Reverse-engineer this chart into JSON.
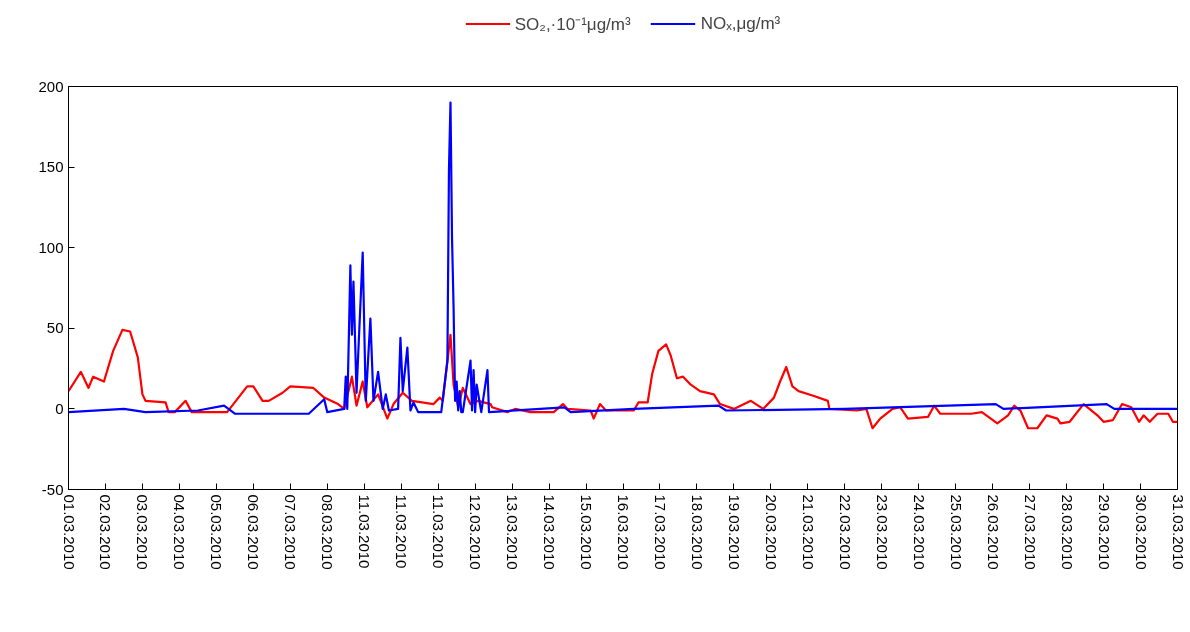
{
  "chart_data": {
    "type": "line",
    "legend": "top",
    "grid": false,
    "line_style": "solid",
    "marker": "none",
    "xlim": [
      "2010-03-01",
      "2010-03-31"
    ],
    "ylim": [
      -50,
      200
    ],
    "yticks": [
      -50,
      0,
      50,
      100,
      150,
      200
    ],
    "xticks": [
      {
        "value": "2010-03-01",
        "label": "01.03.2010"
      },
      {
        "value": "2010-03-02",
        "label": "02.03.2010"
      },
      {
        "value": "2010-03-03",
        "label": "03.03.2010"
      },
      {
        "value": "2010-03-04",
        "label": "04.03.2010"
      },
      {
        "value": "2010-03-05",
        "label": "05.03.2010"
      },
      {
        "value": "2010-03-06",
        "label": "06.03.2010"
      },
      {
        "value": "2010-03-07",
        "label": "07.03.2010"
      },
      {
        "value": "2010-03-08",
        "label": "08.03.2010"
      },
      {
        "value": "2010-03-09",
        "label": "11.03.2010"
      },
      {
        "value": "2010-03-10",
        "label": "11.03.2010"
      },
      {
        "value": "2010-03-11",
        "label": "11.03.2010"
      },
      {
        "value": "2010-03-12",
        "label": "12.03.2010"
      },
      {
        "value": "2010-03-13",
        "label": "13.03.2010"
      },
      {
        "value": "2010-03-14",
        "label": "14.03.2010"
      },
      {
        "value": "2010-03-15",
        "label": "15.03.2010"
      },
      {
        "value": "2010-03-16",
        "label": "16.03.2010"
      },
      {
        "value": "2010-03-17",
        "label": "17.03.2010"
      },
      {
        "value": "2010-03-18",
        "label": "18.03.2010"
      },
      {
        "value": "2010-03-19",
        "label": "19.03.2010"
      },
      {
        "value": "2010-03-20",
        "label": "20.03.2010"
      },
      {
        "value": "2010-03-21",
        "label": "21.03.2010"
      },
      {
        "value": "2010-03-22",
        "label": "22.03.2010"
      },
      {
        "value": "2010-03-23",
        "label": "23.03.2010"
      },
      {
        "value": "2010-03-24",
        "label": "24.03.2010"
      },
      {
        "value": "2010-03-25",
        "label": "25.03.2010"
      },
      {
        "value": "2010-03-26",
        "label": "26.03.2010"
      },
      {
        "value": "2010-03-27",
        "label": "27.03.2010"
      },
      {
        "value": "2010-03-28",
        "label": "28.03.2010"
      },
      {
        "value": "2010-03-29",
        "label": "29.03.2010"
      },
      {
        "value": "2010-03-30",
        "label": "30.03.2010"
      },
      {
        "value": "2010-03-31",
        "label": "31.03.2010"
      }
    ],
    "series": [
      {
        "name": "SO₂,·10⁻¹μg/m³",
        "color": "#ff0000",
        "x": [
          "2010-03-01T00:00",
          "2010-03-01T08:00",
          "2010-03-01T13:00",
          "2010-03-01T16:00",
          "2010-03-01T23:00",
          "2010-03-02T05:00",
          "2010-03-02T11:00",
          "2010-03-02T16:00",
          "2010-03-02T21:00",
          "2010-03-03T00:00",
          "2010-03-03T02:00",
          "2010-03-03T15:00",
          "2010-03-03T17:00",
          "2010-03-03T21:00",
          "2010-03-04T04:00",
          "2010-03-04T08:00",
          "2010-03-05T07:00",
          "2010-03-05T20:00",
          "2010-03-06T00:00",
          "2010-03-06T06:00",
          "2010-03-06T10:00",
          "2010-03-06T19:00",
          "2010-03-07T00:00",
          "2010-03-07T15:00",
          "2010-03-07T22:00",
          "2010-03-08T07:00",
          "2010-03-08T11:00",
          "2010-03-08T16:00",
          "2010-03-08T19:00",
          "2010-03-08T23:00",
          "2010-03-09T02:00",
          "2010-03-09T09:00",
          "2010-03-09T15:00",
          "2010-03-09T19:00",
          "2010-03-10T01:00",
          "2010-03-10T07:00",
          "2010-03-10T21:00",
          "2010-03-11T01:00",
          "2010-03-11T03:00",
          "2010-03-11T08:00",
          "2010-03-11T10:00",
          "2010-03-11T13:00",
          "2010-03-11T16:00",
          "2010-03-11T21:00",
          "2010-03-12T02:00",
          "2010-03-12T10:00",
          "2010-03-12T11:00",
          "2010-03-12T21:00",
          "2010-03-13T02:00",
          "2010-03-13T12:00",
          "2010-03-14T03:00",
          "2010-03-14T09:00",
          "2010-03-14T12:00",
          "2010-03-15T03:00",
          "2010-03-15T05:00",
          "2010-03-15T09:00",
          "2010-03-15T13:00",
          "2010-03-16T07:00",
          "2010-03-16T10:00",
          "2010-03-16T16:00",
          "2010-03-16T19:00",
          "2010-03-16T23:00",
          "2010-03-17T04:00",
          "2010-03-17T07:00",
          "2010-03-17T11:00",
          "2010-03-17T15:00",
          "2010-03-17T20:00",
          "2010-03-18T02:00",
          "2010-03-18T11:00",
          "2010-03-18T15:00",
          "2010-03-19T00:00",
          "2010-03-19T11:00",
          "2010-03-19T19:00",
          "2010-03-20T02:00",
          "2010-03-20T06:00",
          "2010-03-20T10:00",
          "2010-03-20T14:00",
          "2010-03-20T18:00",
          "2010-03-21T04:00",
          "2010-03-21T13:00",
          "2010-03-21T14:00",
          "2010-03-22T08:00",
          "2010-03-22T14:00",
          "2010-03-22T18:00",
          "2010-03-22T23:00",
          "2010-03-23T07:00",
          "2010-03-23T12:00",
          "2010-03-23T17:00",
          "2010-03-24T06:00",
          "2010-03-24T10:00",
          "2010-03-24T14:00",
          "2010-03-25T10:00",
          "2010-03-25T17:00",
          "2010-03-26T03:00",
          "2010-03-26T10:00",
          "2010-03-26T14:00",
          "2010-03-26T18:00",
          "2010-03-26T23:00",
          "2010-03-27T05:00",
          "2010-03-27T11:00",
          "2010-03-27T18:00",
          "2010-03-27T20:00",
          "2010-03-28T02:00",
          "2010-03-28T11:00",
          "2010-03-28T20:00",
          "2010-03-29T00:00",
          "2010-03-29T06:00",
          "2010-03-29T12:00",
          "2010-03-29T18:00",
          "2010-03-29T23:00",
          "2010-03-30T02:00",
          "2010-03-30T06:00",
          "2010-03-30T11:00",
          "2010-03-30T18:00",
          "2010-03-30T21:00",
          "2010-03-31T00:00"
        ],
        "values": [
          11,
          23,
          13,
          20,
          17,
          36,
          49,
          48,
          32,
          9,
          5,
          4,
          -2,
          -2,
          5,
          -2,
          -2,
          14,
          14,
          5,
          5,
          10,
          14,
          13,
          7,
          3,
          0,
          20,
          2,
          17,
          1,
          9,
          -6,
          3,
          10,
          5,
          3,
          7,
          5,
          46,
          15,
          1,
          13,
          3,
          5,
          3,
          1,
          -2,
          0,
          -2,
          -2,
          3,
          0,
          -1,
          -6,
          3,
          -1,
          -1,
          4,
          4,
          22,
          36,
          40,
          33,
          19,
          20,
          15,
          11,
          9,
          3,
          0,
          5,
          0,
          7,
          17,
          26,
          14,
          11,
          8,
          5,
          0,
          -1,
          0,
          -12,
          -6,
          0,
          1,
          -6,
          -5,
          2,
          -3,
          -3,
          -2,
          -9,
          -4,
          2,
          -1,
          -12,
          -12,
          -4,
          -6,
          -9,
          -8,
          3,
          -4,
          -8,
          -7,
          3,
          1,
          -8,
          -4,
          -8,
          -3,
          -3,
          -8,
          -8
        ]
      },
      {
        "name": "NOₓ,μg/m³",
        "color": "#0000ff",
        "x": [
          "2010-03-01T00:00",
          "2010-03-02T12:00",
          "2010-03-03T02:00",
          "2010-03-04T12:00",
          "2010-03-05T05:00",
          "2010-03-05T12:00",
          "2010-03-07T12:00",
          "2010-03-07T22:00",
          "2010-03-08T00:00",
          "2010-03-08T11:00",
          "2010-03-08T12:00",
          "2010-03-08T13:00",
          "2010-03-08T15:00",
          "2010-03-08T16:00",
          "2010-03-08T17:00",
          "2010-03-08T19:00",
          "2010-03-08T23:00",
          "2010-03-09T01:00",
          "2010-03-09T04:00",
          "2010-03-09T06:00",
          "2010-03-09T09:00",
          "2010-03-09T12:00",
          "2010-03-09T14:00",
          "2010-03-09T16:00",
          "2010-03-09T22:00",
          "2010-03-09T23:30",
          "2010-03-10T01:00",
          "2010-03-10T04:00",
          "2010-03-10T06:00",
          "2010-03-10T08:00",
          "2010-03-10T11:00",
          "2010-03-11T02:00",
          "2010-03-11T06:00",
          "2010-03-11T07:00",
          "2010-03-11T08:00",
          "2010-03-11T09:00",
          "2010-03-11T10:00",
          "2010-03-11T11:00",
          "2010-03-11T12:00",
          "2010-03-11T13:00",
          "2010-03-11T14:00",
          "2010-03-11T15:00",
          "2010-03-11T16:00",
          "2010-03-11T21:00",
          "2010-03-11T22:00",
          "2010-03-11T23:00",
          "2010-03-12T00:00",
          "2010-03-12T01:00",
          "2010-03-12T04:00",
          "2010-03-12T08:00",
          "2010-03-12T09:00",
          "2010-03-14T10:00",
          "2010-03-14T14:00",
          "2010-03-16T07:00",
          "2010-03-18T14:00",
          "2010-03-18T19:00",
          "2010-03-22T00:00",
          "2010-03-26T02:00",
          "2010-03-26T07:00",
          "2010-03-29T02:00",
          "2010-03-29T07:00",
          "2010-03-31T00:00"
        ],
        "values": [
          -2,
          0,
          -2,
          -1,
          2,
          -3,
          -3,
          6,
          -2,
          0,
          20,
          0,
          89,
          46,
          79,
          10,
          97,
          5,
          56,
          5,
          23,
          0,
          9,
          -1,
          0,
          44,
          11,
          38,
          -1,
          4,
          -2,
          -2,
          30,
          148,
          190,
          106,
          63,
          5,
          17,
          -1,
          11,
          -2,
          -2,
          30,
          -1,
          24,
          -2,
          15,
          -2,
          24,
          -2,
          1,
          -2,
          0,
          2,
          -1,
          0,
          3,
          0,
          3,
          0,
          0
        ]
      }
    ]
  }
}
